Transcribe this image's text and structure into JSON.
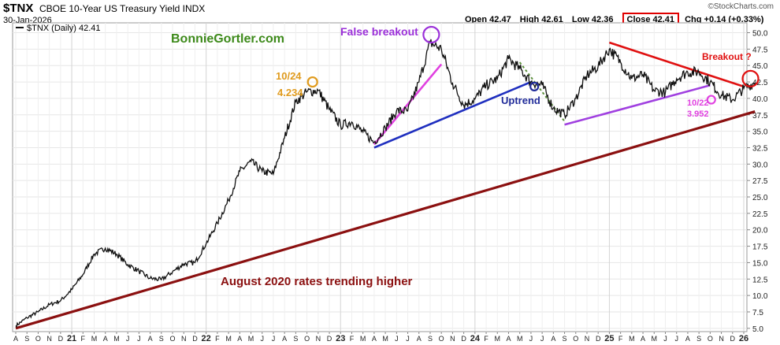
{
  "header": {
    "ticker": "$TNX",
    "title": "CBOE 10-Year US Treasury Yield INDX",
    "date": "30-Jan-2026",
    "open_label": "Open 42.47",
    "high_label": "High 42.61",
    "low_label": "Low 42.36",
    "close_label": "Close 42.41",
    "chg_label": "Chg +0.14 (+0.33%)",
    "brand": "©StockCharts.com"
  },
  "colors": {
    "price": "#111111",
    "green_text": "#3d8a1a",
    "orange": "#e09b1e",
    "purple": "#9b30d9",
    "magenta": "#e040e0",
    "blue": "#1f2fbf",
    "navy": "#1f2a99",
    "red": "#e01010",
    "darkred": "#8b1010",
    "violet": "#a040e0",
    "dashed_green": "#5a8f3a"
  },
  "chart_data": {
    "type": "line",
    "title": "$TNX (Daily) 42.41",
    "legend": "$TNX (Daily) 42.41",
    "legend_position": "top-left",
    "xlabel": "",
    "ylabel": "",
    "ylim": [
      4.5,
      51.5
    ],
    "yticks": [
      "5.0",
      "7.5",
      "10.0",
      "12.5",
      "15.0",
      "17.5",
      "20.0",
      "22.5",
      "25.0",
      "27.5",
      "30.0",
      "32.5",
      "35.0",
      "37.5",
      "40.0",
      "42.5",
      "45.0",
      "47.5",
      "50.0"
    ],
    "xticks": [
      "A",
      "S",
      "O",
      "N",
      "D",
      "21",
      "F",
      "M",
      "A",
      "M",
      "J",
      "J",
      "A",
      "S",
      "O",
      "N",
      "D",
      "22",
      "F",
      "M",
      "A",
      "M",
      "J",
      "J",
      "A",
      "S",
      "O",
      "N",
      "D",
      "23",
      "F",
      "M",
      "A",
      "M",
      "J",
      "J",
      "A",
      "S",
      "O",
      "N",
      "D",
      "24",
      "F",
      "M",
      "A",
      "M",
      "J",
      "J",
      "A",
      "S",
      "O",
      "N",
      "D",
      "25",
      "F",
      "M",
      "A",
      "M",
      "J",
      "J",
      "A",
      "S",
      "O",
      "N",
      "D",
      "26"
    ],
    "year_ticks": [
      "21",
      "22",
      "23",
      "24",
      "25",
      "26"
    ],
    "grid": true,
    "series": [
      {
        "name": "$TNX (Daily)",
        "x": [
          0,
          1,
          2,
          3,
          4,
          5,
          6,
          7,
          8,
          9,
          10,
          11,
          12,
          13,
          14,
          15,
          16,
          17,
          18,
          19,
          20,
          21,
          22,
          23,
          24,
          25,
          26,
          27,
          28,
          29,
          30,
          31,
          32,
          33,
          34,
          35,
          36,
          37,
          38,
          39,
          40,
          41,
          42,
          43,
          44,
          45,
          46,
          47,
          48,
          49,
          50,
          51,
          52,
          53,
          54,
          55,
          56,
          57,
          58,
          59,
          60,
          61,
          62,
          63,
          64,
          65,
          66
        ],
        "values": [
          5.4,
          6.6,
          7.5,
          8.6,
          9.2,
          10.9,
          13.2,
          16.3,
          17.2,
          16.3,
          14.7,
          13.7,
          12.6,
          12.4,
          13.6,
          14.8,
          15.0,
          17.9,
          21.0,
          24.5,
          28.9,
          30.4,
          28.9,
          28.5,
          34.0,
          39.5,
          41.0,
          41.2,
          38.3,
          35.9,
          36.4,
          34.9,
          33.3,
          35.5,
          38.1,
          38.1,
          42.5,
          48.5,
          47.5,
          42.3,
          39.0,
          39.9,
          42.0,
          43.0,
          46.0,
          44.5,
          42.5,
          42.0,
          38.5,
          37.5,
          40.0,
          43.5,
          44.9,
          47.5,
          45.5,
          43.0,
          43.6,
          41.2,
          40.9,
          43.0,
          44.0,
          44.0,
          42.5,
          40.5,
          39.8,
          41.5,
          42.41
        ]
      }
    ],
    "annotations": [
      {
        "text": "BonnieGortler.com",
        "color": "green_text"
      },
      {
        "text": "False breakout",
        "color": "purple"
      },
      {
        "text": "10/24",
        "color": "orange"
      },
      {
        "text": "4.234",
        "color": "orange"
      },
      {
        "text": "Uptrend",
        "color": "navy"
      },
      {
        "text": "Breakout ?",
        "color": "red"
      },
      {
        "text": "10/22",
        "color": "magenta"
      },
      {
        "text": "3.952",
        "color": "magenta"
      },
      {
        "text": "August 2020 rates trending higher",
        "color": "darkred"
      }
    ],
    "trendlines": [
      {
        "name": "long-term-support",
        "from": [
          0,
          5.0
        ],
        "to": [
          66,
          38.0
        ],
        "color": "darkred"
      },
      {
        "name": "2023-rising-magenta",
        "from": [
          32,
          33.0
        ],
        "to": [
          38,
          45.2
        ],
        "color": "magenta"
      },
      {
        "name": "uptrend-blue",
        "from": [
          32,
          32.5
        ],
        "to": [
          46,
          42.5
        ],
        "color": "blue"
      },
      {
        "name": "2024-rising-violet",
        "from": [
          49,
          36.0
        ],
        "to": [
          62,
          42.0
        ],
        "color": "violet"
      },
      {
        "name": "2025-falling-red",
        "from": [
          53,
          48.5
        ],
        "to": [
          65,
          41.8
        ],
        "color": "red"
      },
      {
        "name": "2024-drop-dashed",
        "from": [
          45,
          45.5
        ],
        "to": [
          49,
          36.5
        ],
        "color": "dashed_green"
      }
    ],
    "markers": [
      {
        "name": "oct2022-peak",
        "x": 26.5,
        "y": 42.5,
        "color": "orange"
      },
      {
        "name": "oct2023-peak",
        "x": 37.1,
        "y": 49.7,
        "color": "purple"
      },
      {
        "name": "jul2024-point",
        "x": 46.3,
        "y": 41.8,
        "color": "navy"
      },
      {
        "name": "oct2025-low",
        "x": 62.1,
        "y": 39.8,
        "color": "magenta"
      },
      {
        "name": "jan2026-breakout",
        "x": 65.6,
        "y": 43.0,
        "color": "red"
      }
    ]
  }
}
